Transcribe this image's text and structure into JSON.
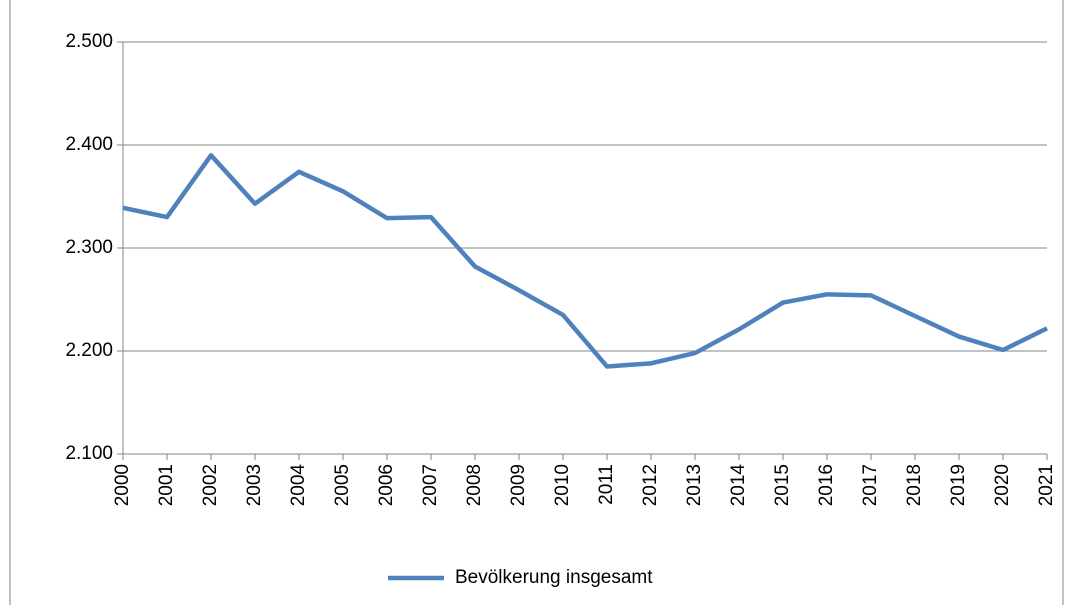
{
  "chart_data": {
    "type": "line",
    "categories": [
      "2000",
      "2001",
      "2002",
      "2003",
      "2004",
      "2005",
      "2006",
      "2007",
      "2008",
      "2009",
      "2010",
      "2011",
      "2012",
      "2013",
      "2014",
      "2015",
      "2016",
      "2017",
      "2018",
      "2019",
      "2020",
      "2021"
    ],
    "series": [
      {
        "name": "Bevölkerung insgesamt",
        "color": "#4f81bd",
        "values": [
          2339,
          2330,
          2390,
          2343,
          2374,
          2355,
          2329,
          2330,
          2282,
          2259,
          2235,
          2185,
          2188,
          2198,
          2221,
          2247,
          2255,
          2254,
          2234,
          2214,
          2201,
          2222
        ]
      }
    ],
    "ylim": [
      2100,
      2500
    ],
    "yticks": [
      {
        "value": 2100,
        "label": "2.100"
      },
      {
        "value": 2200,
        "label": "2.200"
      },
      {
        "value": 2300,
        "label": "2.300"
      },
      {
        "value": 2400,
        "label": "2.400"
      },
      {
        "value": 2500,
        "label": "2.500"
      }
    ],
    "grid": true,
    "legend": "bottom"
  }
}
